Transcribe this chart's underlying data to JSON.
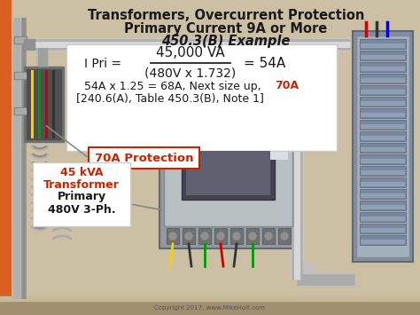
{
  "bg_color": "#cbbfa4",
  "title_line1": "Transformers, Overcurrent Protection",
  "title_line2": "Primary Current 9A or More",
  "title_line3": "450.3(B) Example",
  "title_fontsize": 10.5,
  "formula_box_color": "#ffffff",
  "formula_numerator": "45,000 VA",
  "formula_denominator": "(480V x 1.732)",
  "formula_result": "= 54A",
  "formula_line2_black": "54A x 1.25 = 68A, Next size up, ",
  "formula_line2_red": "70A",
  "formula_line3": "[240.6(A), Table 450.3(B), Note 1]",
  "protection_label_red": "70A Protection",
  "copyright": "Copyright 2017, www.MikeHolt.com",
  "text_color_black": "#1a1a1a",
  "text_color_red": "#cc2200",
  "orange_bar_color": "#d96020"
}
